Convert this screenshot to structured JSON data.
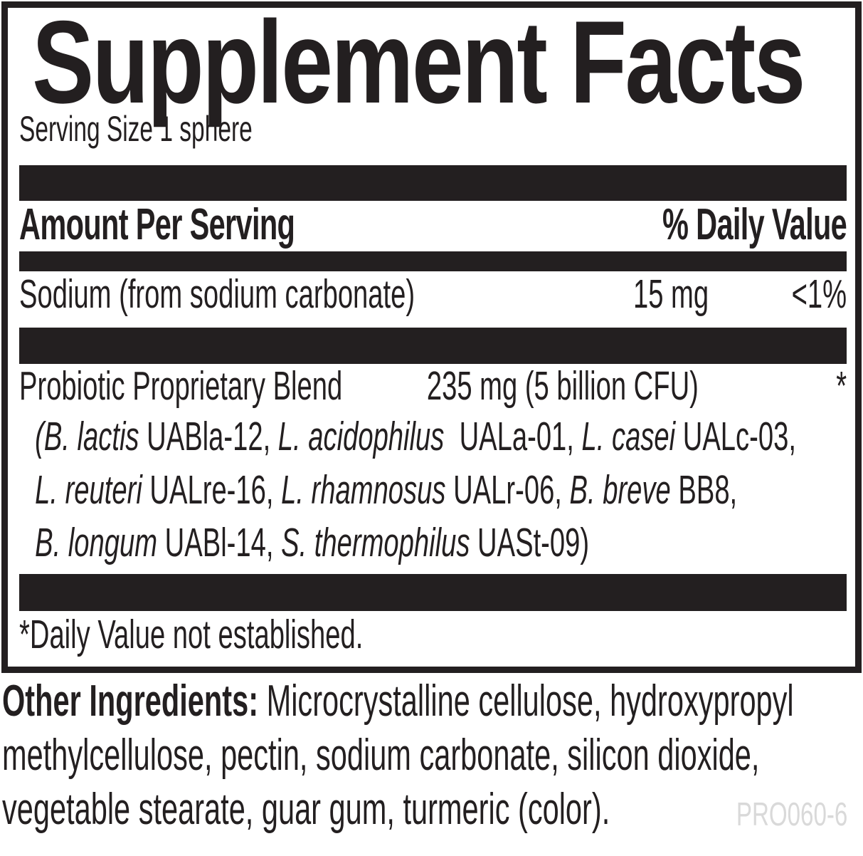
{
  "supplement_facts": {
    "title": "Supplement Facts",
    "serving_size": "Serving Size 1 sphere",
    "columns": {
      "amount": "Amount Per Serving",
      "daily_value": "% Daily Value"
    },
    "nutrients": [
      {
        "name": "Sodium (from sodium carbonate)",
        "amount": "15 mg",
        "daily_value": "<1%"
      }
    ],
    "blend": {
      "name": "Probiotic Proprietary Blend",
      "amount": "235 mg (5 billion CFU)",
      "daily_value": "*",
      "strains": [
        [
          {
            "text": "(B. lactis ",
            "style": "italic"
          },
          {
            "text": "UABla-12, ",
            "style": ""
          },
          {
            "text": "L. acidophilus ",
            "style": "italic"
          },
          {
            "text": " UALa-01, ",
            "style": ""
          },
          {
            "text": "L. casei ",
            "style": "italic"
          },
          {
            "text": "UALc-03,",
            "style": ""
          }
        ],
        [
          {
            "text": "L. reuteri ",
            "style": "italic"
          },
          {
            "text": "UALre-16, ",
            "style": ""
          },
          {
            "text": "L. rhamnosus ",
            "style": "italic"
          },
          {
            "text": "UALr-06, ",
            "style": ""
          },
          {
            "text": "B. breve ",
            "style": "italic"
          },
          {
            "text": "BB8,",
            "style": ""
          }
        ],
        [
          {
            "text": "B. longum ",
            "style": "italic"
          },
          {
            "text": "UABl-14, ",
            "style": ""
          },
          {
            "text": "S. thermophilus ",
            "style": "italic"
          },
          {
            "text": "UASt-09)",
            "style": ""
          }
        ]
      ]
    },
    "footnote": "*Daily Value not established."
  },
  "other_ingredients": {
    "lines": [
      [
        {
          "text": "Other Ingredients: ",
          "style": "bold"
        },
        {
          "text": "Microcrystalline cellulose, hydroxypropyl",
          "style": ""
        }
      ],
      [
        {
          "text": "methylcellulose, pectin, sodium carbonate, silicon dioxide,",
          "style": ""
        }
      ],
      [
        {
          "text": "vegetable stearate, guar gum, turmeric (color).",
          "style": ""
        }
      ]
    ]
  },
  "product_code": "PRO060-6",
  "colors": {
    "ink": "#231f20",
    "bar": "#231f20",
    "code_gray": "#d9d9d9"
  }
}
